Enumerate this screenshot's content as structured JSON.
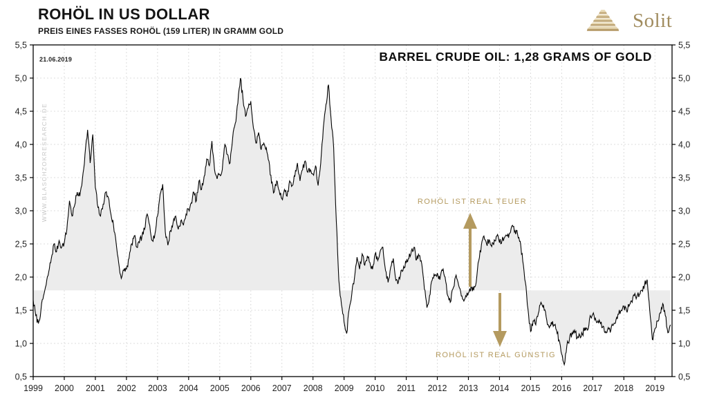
{
  "header": {
    "title": "ROHÖL IN US DOLLAR",
    "subtitle": "PREIS EINES FASSES ROHÖL (159 LITER) IN GRAMM GOLD"
  },
  "logo": {
    "text": "Solit",
    "icon": "pyramid-icon"
  },
  "chart_data": {
    "type": "line",
    "title": "ROHÖL IN US DOLLAR",
    "subtitle": "PREIS EINES FASSES ROHÖL (159 LITER) IN GRAMM GOLD",
    "date_label": "21.06.2019",
    "callout": "BARREL CRUDE OIL: 1,28 GRAMS OF GOLD",
    "watermark": "WWW.BLASCHZOKRESEARCH.DE",
    "annotations": [
      {
        "text": "ROHÖL IST REAL TEUER",
        "arrow": "up"
      },
      {
        "text": "ROHÖL IST REAL GÜNSTIG",
        "arrow": "down"
      }
    ],
    "reference_level": 1.8,
    "ylim": [
      0.5,
      5.5
    ],
    "xlim": [
      1999,
      2019.55
    ],
    "ytick_values": [
      5.5,
      5.0,
      4.5,
      4.0,
      3.5,
      3.0,
      2.5,
      2.0,
      1.5,
      1.0,
      0.5
    ],
    "ytick_labels": [
      "5,5",
      "5,0",
      "4,5",
      "4,0",
      "3,5",
      "3,0",
      "2,5",
      "2,0",
      "1,5",
      "1,0",
      "0,5"
    ],
    "xtick_labels": [
      "1999",
      "2000",
      "2001",
      "2002",
      "2003",
      "2004",
      "2005",
      "2006",
      "2007",
      "2008",
      "2009",
      "2010",
      "2011",
      "2012",
      "2013",
      "2014",
      "2015",
      "2016",
      "2017",
      "2018",
      "2019"
    ],
    "grid": true,
    "legend_position": "none",
    "x_start": 1999.0,
    "x_step_years": 0.08333,
    "render_jitter": 0.05,
    "values": [
      1.65,
      1.42,
      1.3,
      1.5,
      1.72,
      1.88,
      2.08,
      2.28,
      2.5,
      2.38,
      2.55,
      2.45,
      2.52,
      2.72,
      3.15,
      2.92,
      3.08,
      3.28,
      3.22,
      3.48,
      3.85,
      4.22,
      3.72,
      4.15,
      3.35,
      3.05,
      2.92,
      3.1,
      3.28,
      3.2,
      2.95,
      2.78,
      2.52,
      2.22,
      1.98,
      2.1,
      2.12,
      2.28,
      2.5,
      2.62,
      2.45,
      2.52,
      2.62,
      2.72,
      2.95,
      2.78,
      2.55,
      2.65,
      2.92,
      3.25,
      3.4,
      2.68,
      2.48,
      2.7,
      2.82,
      2.92,
      2.72,
      2.85,
      2.78,
      2.95,
      3.02,
      3.12,
      3.28,
      3.15,
      3.45,
      3.32,
      3.52,
      3.78,
      3.68,
      4.05,
      3.62,
      3.48,
      3.55,
      3.62,
      4.0,
      3.85,
      3.72,
      4.1,
      4.32,
      4.62,
      5.0,
      4.68,
      4.42,
      4.55,
      4.65,
      4.25,
      4.02,
      4.18,
      3.92,
      4.02,
      3.95,
      3.75,
      3.42,
      3.28,
      3.45,
      3.3,
      3.18,
      3.32,
      3.22,
      3.45,
      3.38,
      3.52,
      3.72,
      3.45,
      3.62,
      3.75,
      3.58,
      3.62,
      3.55,
      3.68,
      3.38,
      3.72,
      4.25,
      4.6,
      4.9,
      4.38,
      3.95,
      2.85,
      1.95,
      1.58,
      1.32,
      1.15,
      1.52,
      1.75,
      1.98,
      2.3,
      2.12,
      2.35,
      2.18,
      2.32,
      2.22,
      2.12,
      2.35,
      2.25,
      2.4,
      2.45,
      2.1,
      1.92,
      2.15,
      2.28,
      1.95,
      1.93,
      2.1,
      2.16,
      2.22,
      2.28,
      2.4,
      2.45,
      2.26,
      2.32,
      2.2,
      1.82,
      1.54,
      1.72,
      1.95,
      2.02,
      2.06,
      1.96,
      2.1,
      2.0,
      1.72,
      1.62,
      1.82,
      2.0,
      1.92,
      1.78,
      1.66,
      1.72,
      1.76,
      1.86,
      1.8,
      1.92,
      2.25,
      2.48,
      2.62,
      2.5,
      2.56,
      2.46,
      2.56,
      2.62,
      2.52,
      2.56,
      2.6,
      2.62,
      2.66,
      2.78,
      2.7,
      2.64,
      2.54,
      2.24,
      1.92,
      1.52,
      1.18,
      1.34,
      1.28,
      1.45,
      1.62,
      1.58,
      1.4,
      1.26,
      1.32,
      1.28,
      1.2,
      1.05,
      0.84,
      0.68,
      0.96,
      1.06,
      1.16,
      1.2,
      1.08,
      1.12,
      1.14,
      1.24,
      1.2,
      1.42,
      1.44,
      1.38,
      1.34,
      1.3,
      1.26,
      1.18,
      1.24,
      1.2,
      1.28,
      1.36,
      1.44,
      1.5,
      1.56,
      1.5,
      1.56,
      1.64,
      1.72,
      1.7,
      1.74,
      1.8,
      1.88,
      1.96,
      1.5,
      1.06,
      1.22,
      1.34,
      1.46,
      1.6,
      1.42,
      1.16,
      1.28
    ],
    "colors": {
      "line": "#000000",
      "fill": "#ececec",
      "accent_gold": "#b49a5f",
      "grid": "#dcdcdc",
      "axis": "#000000",
      "watermark": "#c7c7c7"
    }
  }
}
